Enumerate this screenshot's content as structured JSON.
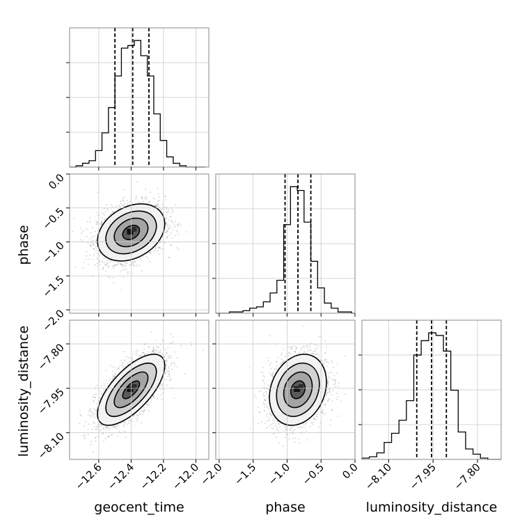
{
  "chart_data": {
    "type": "corner",
    "parameters": [
      {
        "name": "geocent_time",
        "range": [
          -12.78,
          -11.92
        ],
        "ticks": [
          -12.6,
          -12.4,
          -12.2,
          -12.0
        ],
        "tick_labels": [
          "−12.6",
          "−12.4",
          "−12.2",
          "−12.0"
        ],
        "quantiles": [
          -12.5,
          -12.39,
          -12.29
        ]
      },
      {
        "name": "phase",
        "range": [
          -2.05,
          0.0
        ],
        "ticks": [
          -2.0,
          -1.5,
          -1.0,
          -0.5,
          0.0
        ],
        "tick_labels": [
          "−2.0",
          "−1.5",
          "−1.0",
          "−0.5",
          "0.0"
        ],
        "quantiles": [
          -1.03,
          -0.84,
          -0.65
        ]
      },
      {
        "name": "luminosity_distance",
        "range": [
          -8.19,
          -7.72
        ],
        "ticks": [
          -8.1,
          -7.95,
          -7.8
        ],
        "tick_labels": [
          "−8.10",
          "−7.95",
          "−7.80"
        ],
        "quantiles": [
          -8.005,
          -7.955,
          -7.905
        ]
      }
    ],
    "histograms": [
      {
        "parameter": "geocent_time",
        "bin_edges": [
          -12.78,
          -12.74,
          -12.7,
          -12.66,
          -12.62,
          -12.58,
          -12.54,
          -12.5,
          -12.46,
          -12.42,
          -12.38,
          -12.34,
          -12.3,
          -12.26,
          -12.22,
          -12.18,
          -12.14,
          -12.1,
          -12.06,
          -12.02,
          -11.98,
          -11.94
        ],
        "counts": [
          0,
          1,
          3,
          5,
          13,
          27,
          47,
          72,
          94,
          96,
          100,
          88,
          72,
          42,
          21,
          8,
          3,
          1,
          0,
          0,
          0
        ]
      },
      {
        "parameter": "phase",
        "bin_edges": [
          -2.05,
          -1.95,
          -1.85,
          -1.75,
          -1.65,
          -1.55,
          -1.45,
          -1.35,
          -1.25,
          -1.15,
          -1.05,
          -0.95,
          -0.85,
          -0.75,
          -0.65,
          -0.55,
          -0.45,
          -0.35,
          -0.25,
          -0.15,
          -0.05,
          0.0
        ],
        "counts": [
          0,
          0,
          1,
          1,
          2,
          4,
          5,
          9,
          16,
          26,
          70,
          100,
          97,
          72,
          41,
          20,
          8,
          4,
          1,
          1,
          0
        ]
      },
      {
        "parameter": "luminosity_distance",
        "bin_edges": [
          -8.19,
          -8.165,
          -8.14,
          -8.115,
          -8.09,
          -8.065,
          -8.04,
          -8.015,
          -7.99,
          -7.965,
          -7.94,
          -7.915,
          -7.89,
          -7.865,
          -7.84,
          -7.815,
          -7.79,
          -7.765,
          -7.74,
          -7.72
        ],
        "counts": [
          1,
          2,
          5,
          13,
          20,
          30,
          45,
          80,
          91,
          97,
          95,
          83,
          53,
          21,
          8,
          4,
          1,
          0,
          0
        ]
      }
    ],
    "joint_2d": [
      {
        "x": "geocent_time",
        "y": "phase",
        "center": [
          -12.4,
          -0.86
        ],
        "sigma": [
          0.104,
          0.21
        ],
        "correlation": 0.3
      },
      {
        "x": "geocent_time",
        "y": "luminosity_distance",
        "center": [
          -12.4,
          -7.955
        ],
        "sigma": [
          0.104,
          0.06
        ],
        "correlation": 0.68
      },
      {
        "x": "phase",
        "y": "luminosity_distance",
        "center": [
          -0.84,
          -7.955
        ],
        "sigma": [
          0.21,
          0.06
        ],
        "correlation": 0.22
      }
    ],
    "contour_levels_sigma": [
      0.5,
      1.0,
      1.5,
      2.0
    ],
    "grid": true
  }
}
